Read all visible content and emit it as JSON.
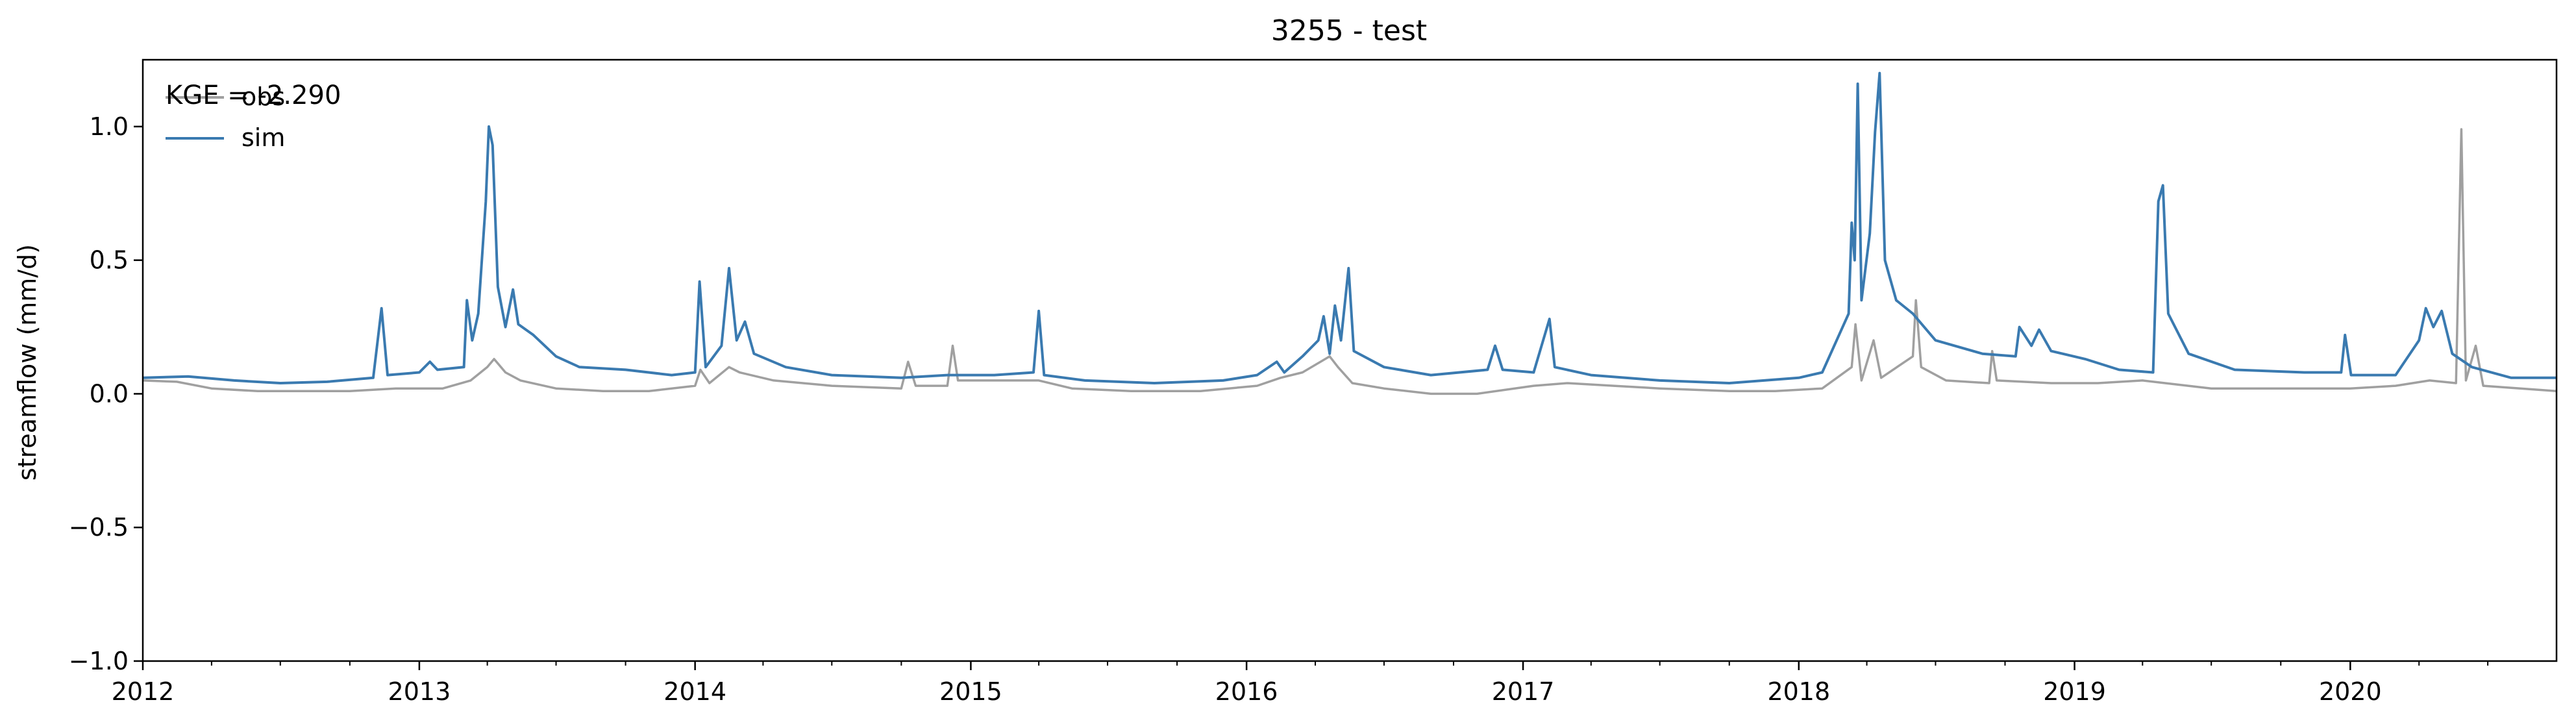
{
  "chart_data": {
    "type": "line",
    "title": "3255 - test",
    "xlabel": "",
    "ylabel": "streamflow (mm/d)",
    "xlim": [
      "2012-01-01",
      "2020-09-30"
    ],
    "ylim": [
      -1.0,
      1.25
    ],
    "x_ticks": [
      "2012",
      "2013",
      "2014",
      "2015",
      "2016",
      "2017",
      "2018",
      "2019",
      "2020"
    ],
    "y_ticks": [
      "−1.0",
      "−0.5",
      "0.0",
      "0.5",
      "1.0"
    ],
    "y_tick_values": [
      -1.0,
      -0.5,
      0.0,
      0.5,
      1.0
    ],
    "grid": false,
    "legend_position": "top-left",
    "annotation": "KGE = -2.290",
    "series": [
      {
        "name": "obs",
        "color": "#a0a0a0",
        "points": [
          [
            "2012-01-01",
            0.05
          ],
          [
            "2012-02-15",
            0.045
          ],
          [
            "2012-04-01",
            0.02
          ],
          [
            "2012-06-01",
            0.01
          ],
          [
            "2012-08-01",
            0.01
          ],
          [
            "2012-10-01",
            0.01
          ],
          [
            "2012-12-01",
            0.02
          ],
          [
            "2013-02-01",
            0.02
          ],
          [
            "2013-03-10",
            0.05
          ],
          [
            "2013-04-01",
            0.1
          ],
          [
            "2013-04-10",
            0.13
          ],
          [
            "2013-04-25",
            0.08
          ],
          [
            "2013-05-15",
            0.05
          ],
          [
            "2013-07-01",
            0.02
          ],
          [
            "2013-09-01",
            0.01
          ],
          [
            "2013-11-01",
            0.01
          ],
          [
            "2014-01-01",
            0.03
          ],
          [
            "2014-01-08",
            0.09
          ],
          [
            "2014-01-20",
            0.04
          ],
          [
            "2014-02-15",
            0.1
          ],
          [
            "2014-03-01",
            0.08
          ],
          [
            "2014-04-15",
            0.05
          ],
          [
            "2014-07-01",
            0.03
          ],
          [
            "2014-10-01",
            0.02
          ],
          [
            "2014-10-10",
            0.12
          ],
          [
            "2014-10-20",
            0.03
          ],
          [
            "2014-12-01",
            0.03
          ],
          [
            "2014-12-08",
            0.18
          ],
          [
            "2014-12-15",
            0.05
          ],
          [
            "2015-02-01",
            0.05
          ],
          [
            "2015-04-01",
            0.05
          ],
          [
            "2015-05-15",
            0.02
          ],
          [
            "2015-08-01",
            0.01
          ],
          [
            "2015-11-01",
            0.01
          ],
          [
            "2016-01-15",
            0.03
          ],
          [
            "2016-02-15",
            0.06
          ],
          [
            "2016-03-15",
            0.08
          ],
          [
            "2016-04-20",
            0.14
          ],
          [
            "2016-05-01",
            0.1
          ],
          [
            "2016-05-20",
            0.04
          ],
          [
            "2016-07-01",
            0.02
          ],
          [
            "2016-09-01",
            0.0
          ],
          [
            "2016-11-01",
            0.0
          ],
          [
            "2017-01-15",
            0.03
          ],
          [
            "2017-03-01",
            0.04
          ],
          [
            "2017-05-01",
            0.03
          ],
          [
            "2017-07-01",
            0.02
          ],
          [
            "2017-10-01",
            0.01
          ],
          [
            "2017-12-01",
            0.01
          ],
          [
            "2018-02-01",
            0.02
          ],
          [
            "2018-03-12",
            0.1
          ],
          [
            "2018-03-17",
            0.26
          ],
          [
            "2018-03-25",
            0.05
          ],
          [
            "2018-04-10",
            0.2
          ],
          [
            "2018-04-20",
            0.06
          ],
          [
            "2018-06-01",
            0.14
          ],
          [
            "2018-06-05",
            0.35
          ],
          [
            "2018-06-12",
            0.1
          ],
          [
            "2018-07-15",
            0.05
          ],
          [
            "2018-09-10",
            0.04
          ],
          [
            "2018-09-14",
            0.16
          ],
          [
            "2018-09-20",
            0.05
          ],
          [
            "2018-12-01",
            0.04
          ],
          [
            "2019-02-01",
            0.04
          ],
          [
            "2019-04-01",
            0.05
          ],
          [
            "2019-05-01",
            0.04
          ],
          [
            "2019-07-01",
            0.02
          ],
          [
            "2019-10-01",
            0.02
          ],
          [
            "2020-01-01",
            0.02
          ],
          [
            "2020-03-01",
            0.03
          ],
          [
            "2020-04-15",
            0.05
          ],
          [
            "2020-05-20",
            0.04
          ],
          [
            "2020-05-27",
            0.99
          ],
          [
            "2020-06-02",
            0.05
          ],
          [
            "2020-06-15",
            0.18
          ],
          [
            "2020-06-25",
            0.03
          ],
          [
            "2020-09-30",
            0.01
          ]
        ]
      },
      {
        "name": "sim",
        "color": "#3a7ab0",
        "points": [
          [
            "2012-01-01",
            0.06
          ],
          [
            "2012-03-01",
            0.065
          ],
          [
            "2012-05-01",
            0.05
          ],
          [
            "2012-07-01",
            0.04
          ],
          [
            "2012-09-01",
            0.045
          ],
          [
            "2012-11-01",
            0.06
          ],
          [
            "2012-11-12",
            0.32
          ],
          [
            "2012-11-20",
            0.07
          ],
          [
            "2013-01-01",
            0.08
          ],
          [
            "2013-01-15",
            0.12
          ],
          [
            "2013-01-25",
            0.09
          ],
          [
            "2013-03-01",
            0.1
          ],
          [
            "2013-03-05",
            0.35
          ],
          [
            "2013-03-12",
            0.2
          ],
          [
            "2013-03-20",
            0.3
          ],
          [
            "2013-03-30",
            0.72
          ],
          [
            "2013-04-03",
            1.0
          ],
          [
            "2013-04-08",
            0.93
          ],
          [
            "2013-04-15",
            0.4
          ],
          [
            "2013-04-25",
            0.25
          ],
          [
            "2013-05-05",
            0.39
          ],
          [
            "2013-05-12",
            0.26
          ],
          [
            "2013-06-01",
            0.22
          ],
          [
            "2013-07-01",
            0.14
          ],
          [
            "2013-08-01",
            0.1
          ],
          [
            "2013-10-01",
            0.09
          ],
          [
            "2013-12-01",
            0.07
          ],
          [
            "2014-01-01",
            0.08
          ],
          [
            "2014-01-07",
            0.42
          ],
          [
            "2014-01-15",
            0.1
          ],
          [
            "2014-02-05",
            0.18
          ],
          [
            "2014-02-15",
            0.47
          ],
          [
            "2014-02-25",
            0.2
          ],
          [
            "2014-03-08",
            0.27
          ],
          [
            "2014-03-20",
            0.15
          ],
          [
            "2014-05-01",
            0.1
          ],
          [
            "2014-07-01",
            0.07
          ],
          [
            "2014-10-01",
            0.06
          ],
          [
            "2014-12-01",
            0.07
          ],
          [
            "2015-02-01",
            0.07
          ],
          [
            "2015-03-25",
            0.08
          ],
          [
            "2015-04-01",
            0.31
          ],
          [
            "2015-04-08",
            0.07
          ],
          [
            "2015-06-01",
            0.05
          ],
          [
            "2015-09-01",
            0.04
          ],
          [
            "2015-12-01",
            0.05
          ],
          [
            "2016-01-15",
            0.07
          ],
          [
            "2016-02-10",
            0.12
          ],
          [
            "2016-02-20",
            0.08
          ],
          [
            "2016-03-15",
            0.14
          ],
          [
            "2016-04-05",
            0.2
          ],
          [
            "2016-04-12",
            0.29
          ],
          [
            "2016-04-20",
            0.15
          ],
          [
            "2016-04-27",
            0.33
          ],
          [
            "2016-05-05",
            0.2
          ],
          [
            "2016-05-15",
            0.47
          ],
          [
            "2016-05-22",
            0.16
          ],
          [
            "2016-07-01",
            0.1
          ],
          [
            "2016-09-01",
            0.07
          ],
          [
            "2016-11-15",
            0.09
          ],
          [
            "2016-11-25",
            0.18
          ],
          [
            "2016-12-05",
            0.09
          ],
          [
            "2017-01-15",
            0.08
          ],
          [
            "2017-02-05",
            0.28
          ],
          [
            "2017-02-12",
            0.1
          ],
          [
            "2017-04-01",
            0.07
          ],
          [
            "2017-07-01",
            0.05
          ],
          [
            "2017-10-01",
            0.04
          ],
          [
            "2018-01-01",
            0.06
          ],
          [
            "2018-02-01",
            0.08
          ],
          [
            "2018-03-08",
            0.3
          ],
          [
            "2018-03-12",
            0.64
          ],
          [
            "2018-03-16",
            0.5
          ],
          [
            "2018-03-20",
            1.16
          ],
          [
            "2018-03-25",
            0.35
          ],
          [
            "2018-04-05",
            0.6
          ],
          [
            "2018-04-12",
            0.98
          ],
          [
            "2018-04-18",
            1.2
          ],
          [
            "2018-04-25",
            0.5
          ],
          [
            "2018-05-10",
            0.35
          ],
          [
            "2018-06-01",
            0.3
          ],
          [
            "2018-07-01",
            0.2
          ],
          [
            "2018-09-01",
            0.15
          ],
          [
            "2018-10-15",
            0.14
          ],
          [
            "2018-10-20",
            0.25
          ],
          [
            "2018-11-05",
            0.18
          ],
          [
            "2018-11-15",
            0.24
          ],
          [
            "2018-12-01",
            0.16
          ],
          [
            "2019-01-15",
            0.13
          ],
          [
            "2019-03-01",
            0.09
          ],
          [
            "2019-04-15",
            0.08
          ],
          [
            "2019-04-22",
            0.72
          ],
          [
            "2019-04-28",
            0.78
          ],
          [
            "2019-05-05",
            0.3
          ],
          [
            "2019-06-01",
            0.15
          ],
          [
            "2019-08-01",
            0.09
          ],
          [
            "2019-11-01",
            0.08
          ],
          [
            "2019-12-20",
            0.08
          ],
          [
            "2019-12-25",
            0.22
          ],
          [
            "2020-01-02",
            0.07
          ],
          [
            "2020-03-01",
            0.07
          ],
          [
            "2020-04-01",
            0.2
          ],
          [
            "2020-04-10",
            0.32
          ],
          [
            "2020-04-20",
            0.25
          ],
          [
            "2020-05-01",
            0.31
          ],
          [
            "2020-05-15",
            0.15
          ],
          [
            "2020-06-10",
            0.1
          ],
          [
            "2020-08-01",
            0.06
          ],
          [
            "2020-09-30",
            0.06
          ]
        ]
      }
    ]
  }
}
